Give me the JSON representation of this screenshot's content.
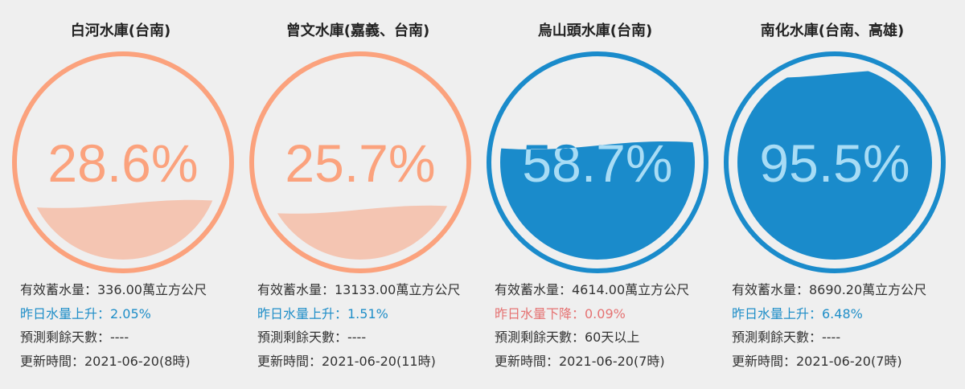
{
  "colors": {
    "background": "#efefef",
    "low_ring": "#fba27d",
    "low_fill": "#f4c5b2",
    "high_ring": "#1a8bcb",
    "high_fill": "#1a8bcb",
    "text_on_water": "#a8dcf5",
    "rise_text": "#1f8ec8",
    "fall_text": "#e57373"
  },
  "reservoirs": [
    {
      "name": "白河水庫(台南)",
      "percent_label": "28.6%",
      "percent": 28.6,
      "theme": "low",
      "storage": "有效蓄水量：336.00萬立方公尺",
      "change": "昨日水量上升：2.05%",
      "change_direction": "rise",
      "remaining": "預測剩餘天數：----",
      "updated": "更新時間：2021-06-20(8時)"
    },
    {
      "name": "曾文水庫(嘉義、台南)",
      "percent_label": "25.7%",
      "percent": 25.7,
      "theme": "low",
      "storage": "有效蓄水量：13133.00萬立方公尺",
      "change": "昨日水量上升：1.51%",
      "change_direction": "rise",
      "remaining": "預測剩餘天數：----",
      "updated": "更新時間：2021-06-20(11時)"
    },
    {
      "name": "烏山頭水庫(台南)",
      "percent_label": "58.7%",
      "percent": 58.7,
      "theme": "high",
      "storage": "有效蓄水量：4614.00萬立方公尺",
      "change": "昨日水量下降：0.09%",
      "change_direction": "fall",
      "remaining": "預測剩餘天數：60天以上",
      "updated": "更新時間：2021-06-20(7時)"
    },
    {
      "name": "南化水庫(台南、高雄)",
      "percent_label": "95.5%",
      "percent": 95.5,
      "theme": "high",
      "storage": "有效蓄水量：8690.20萬立方公尺",
      "change": "昨日水量上升：6.48%",
      "change_direction": "rise",
      "remaining": "預測剩餘天數：----",
      "updated": "更新時間：2021-06-20(7時)"
    }
  ]
}
